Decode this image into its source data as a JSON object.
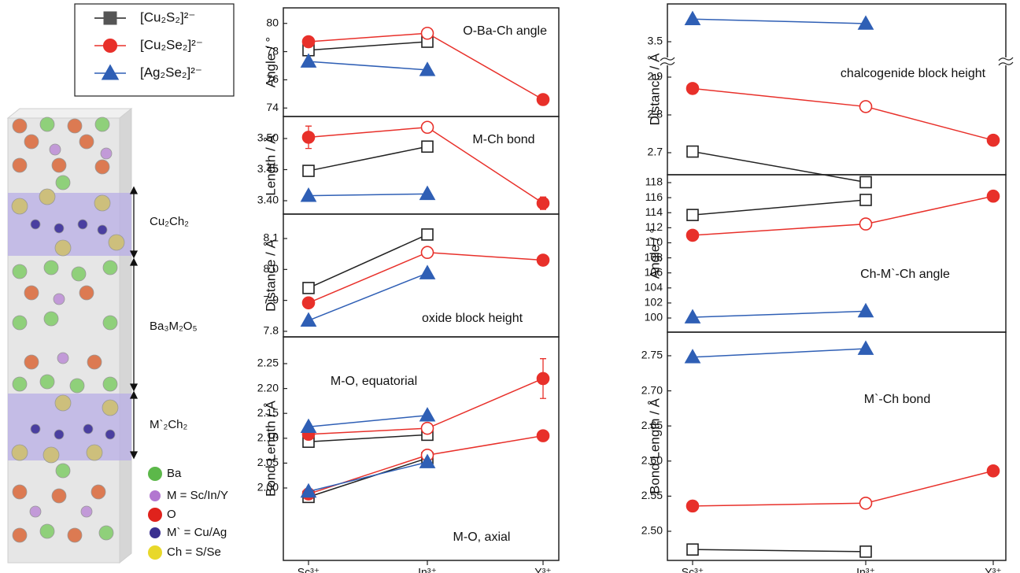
{
  "structure": {
    "blocks": [
      "Cu₂Ch₂",
      "Ba₃M₂O₅",
      "M`₂Ch₂"
    ],
    "atoms": [
      "Ba",
      "M = Sc/In/Y",
      "O",
      "M` = Cu/Ag",
      "Ch = S/Se"
    ]
  },
  "chart_data": [
    {
      "type": "line",
      "ylabel": "Angle / °",
      "annotations": [
        "O-Ba-Ch angle"
      ],
      "ylim": [
        73.4,
        81.1
      ],
      "yticks": [
        74,
        76,
        78,
        80
      ],
      "series": [
        {
          "name": "[Cu₂S₂]²⁻",
          "color": "#222222",
          "marker": "square",
          "values": [
            78.1,
            78.7,
            null
          ],
          "filled": [
            false,
            false,
            false
          ]
        },
        {
          "name": "[Cu₂Se₂]²⁻",
          "color": "#e8302a",
          "marker": "circle",
          "values": [
            78.7,
            79.3,
            74.6
          ],
          "filled": [
            true,
            false,
            true
          ],
          "errors": [
            null,
            null,
            0.25
          ]
        },
        {
          "name": "[Ag₂Se₂]²⁻",
          "color": "#2f5fb5",
          "marker": "triangle",
          "values": [
            77.3,
            76.7,
            null
          ],
          "filled": [
            true,
            true,
            true
          ]
        }
      ]
    },
    {
      "type": "line",
      "ylabel": "Length / Å",
      "annotations": [
        "M-Ch bond"
      ],
      "ylim": [
        3.3785,
        3.5354
      ],
      "yticks": [
        {
          "value": 3.4,
          "label": "3.40"
        },
        {
          "value": 3.45,
          "label": "3.45"
        },
        {
          "value": 3.5,
          "label": "3.50"
        }
      ],
      "series": [
        {
          "name": "[Cu₂S₂]²⁻",
          "color": "#222222",
          "marker": "square",
          "values": [
            3.448,
            3.487,
            null
          ],
          "filled": [
            false,
            false,
            false
          ]
        },
        {
          "name": "[Cu₂Se₂]²⁻",
          "color": "#e8302a",
          "marker": "circle",
          "values": [
            3.502,
            3.518,
            3.396
          ],
          "filled": [
            true,
            false,
            true
          ],
          "errors": [
            0.018,
            null,
            0.01
          ]
        },
        {
          "name": "[Ag₂Se₂]²⁻",
          "color": "#2f5fb5",
          "marker": "triangle",
          "values": [
            3.408,
            3.411,
            null
          ],
          "filled": [
            true,
            true,
            true
          ]
        }
      ]
    },
    {
      "type": "line",
      "ylabel": "Distance / Å",
      "annotations": [
        "oxide block height"
      ],
      "ylim": [
        7.782,
        8.179
      ],
      "yticks": [
        7.8,
        7.9,
        {
          "value": 8.0,
          "label": "8.0"
        },
        8.1
      ],
      "series": [
        {
          "name": "[Cu₂S₂]²⁻",
          "color": "#222222",
          "marker": "square",
          "values": [
            7.94,
            8.113,
            null
          ],
          "filled": [
            false,
            false,
            false
          ]
        },
        {
          "name": "[Cu₂Se₂]²⁻",
          "color": "#e8302a",
          "marker": "circle",
          "values": [
            7.892,
            8.055,
            8.03
          ],
          "filled": [
            true,
            false,
            true
          ]
        },
        {
          "name": "[Ag₂Se₂]²⁻",
          "color": "#2f5fb5",
          "marker": "triangle",
          "values": [
            7.835,
            7.988,
            null
          ],
          "filled": [
            true,
            true,
            true
          ]
        }
      ]
    },
    {
      "type": "line",
      "ylabel": "Bond Length / Å",
      "annotations": [
        "M-O, equatorial",
        "M-O, axial"
      ],
      "categories": [
        "Sc³⁺",
        "In³⁺",
        "Y³⁺"
      ],
      "ylim": [
        1.8544,
        2.3038
      ],
      "yticks": [
        {
          "value": 2.0,
          "label": "2.00"
        },
        2.05,
        {
          "value": 2.1,
          "label": "2.10"
        },
        2.15,
        {
          "value": 2.2,
          "label": "2.20"
        },
        2.25
      ],
      "series": [
        {
          "name": "[Cu₂S₂]²⁻",
          "color": "#222222",
          "marker": "square",
          "values": [
            2.093,
            2.107,
            null
          ],
          "filled": [
            false,
            false,
            false
          ]
        },
        {
          "name": "[Cu₂Se₂]²⁻",
          "color": "#e8302a",
          "marker": "circle",
          "values": [
            2.108,
            2.12,
            2.22
          ],
          "filled": [
            true,
            false,
            true
          ],
          "errors": [
            null,
            null,
            0.04
          ]
        },
        {
          "name": "[Ag₂Se₂]²⁻",
          "color": "#2f5fb5",
          "marker": "triangle",
          "values": [
            2.123,
            2.146,
            null
          ],
          "filled": [
            true,
            true,
            true
          ]
        },
        {
          "name": "[Cu₂S₂]²⁻",
          "color": "#222222",
          "marker": "square",
          "values": [
            1.982,
            2.06,
            null
          ],
          "filled": [
            false,
            false,
            false
          ]
        },
        {
          "name": "[Cu₂Se₂]²⁻",
          "color": "#e8302a",
          "marker": "circle",
          "values": [
            1.988,
            2.066,
            2.105
          ],
          "filled": [
            true,
            false,
            true
          ]
        },
        {
          "name": "[Ag₂Se₂]²⁻",
          "color": "#2f5fb5",
          "marker": "triangle",
          "values": [
            1.993,
            2.052,
            null
          ],
          "filled": [
            true,
            true,
            true
          ]
        }
      ]
    },
    {
      "type": "line",
      "ylabel": "Distance / Å",
      "annotations": [
        "chalcogenide block height"
      ],
      "ylim": [
        2.6417,
        3.6
      ],
      "ylim_break": [
        2.9417,
        3.448
      ],
      "yticks": [
        2.7,
        2.8,
        2.9,
        3.5
      ],
      "series": [
        {
          "name": "[Cu₂S₂]²⁻",
          "color": "#222222",
          "marker": "square",
          "values": [
            2.703,
            2.622,
            null
          ],
          "filled": [
            false,
            false,
            false
          ]
        },
        {
          "name": "[Cu₂Se₂]²⁻",
          "color": "#e8302a",
          "marker": "circle",
          "values": [
            2.87,
            2.822,
            2.733
          ],
          "filled": [
            true,
            false,
            true
          ]
        },
        {
          "name": "[Ag₂Se₂]²⁻",
          "color": "#2f5fb5",
          "marker": "triangle",
          "values": [
            3.56,
            3.548,
            null
          ],
          "filled": [
            true,
            true,
            true
          ]
        }
      ]
    },
    {
      "type": "line",
      "ylabel": "Angle / °",
      "annotations": [
        "Ch-M`-Ch angle"
      ],
      "ylim": [
        98.12,
        119.05
      ],
      "yticks": [
        100,
        102,
        104,
        106,
        108,
        110,
        112,
        114,
        116,
        118
      ],
      "series": [
        {
          "name": "[Cu₂S₂]²⁻",
          "color": "#222222",
          "marker": "square",
          "values": [
            113.7,
            115.7,
            null
          ],
          "filled": [
            false,
            false,
            false
          ]
        },
        {
          "name": "[Cu₂Se₂]²⁻",
          "color": "#e8302a",
          "marker": "circle",
          "values": [
            111.0,
            112.5,
            116.2
          ],
          "filled": [
            true,
            false,
            true
          ]
        },
        {
          "name": "[Ag₂Se₂]²⁻",
          "color": "#2f5fb5",
          "marker": "triangle",
          "values": [
            100.1,
            100.9,
            null
          ],
          "filled": [
            true,
            true,
            true
          ]
        }
      ]
    },
    {
      "type": "line",
      "ylabel": "Bond Length / Å",
      "annotations": [
        "M`-Ch bond"
      ],
      "categories": [
        "Sc³⁺",
        "In³⁺",
        "Y³⁺"
      ],
      "ylim": [
        2.4585,
        2.7836
      ],
      "yticks": [
        {
          "value": 2.5,
          "label": "2.50"
        },
        2.55,
        {
          "value": 2.6,
          "label": "2.60"
        },
        2.65,
        {
          "value": 2.7,
          "label": "2.70"
        },
        2.75
      ],
      "series": [
        {
          "name": "[Cu₂S₂]²⁻",
          "color": "#222222",
          "marker": "square",
          "values": [
            2.474,
            2.471,
            null
          ],
          "filled": [
            false,
            false,
            false
          ]
        },
        {
          "name": "[Cu₂Se₂]²⁻",
          "color": "#e8302a",
          "marker": "circle",
          "values": [
            2.536,
            2.54,
            2.586
          ],
          "filled": [
            true,
            false,
            true
          ]
        },
        {
          "name": "[Ag₂Se₂]²⁻",
          "color": "#2f5fb5",
          "marker": "triangle",
          "values": [
            2.748,
            2.76,
            null
          ],
          "filled": [
            true,
            true,
            true
          ]
        }
      ]
    }
  ]
}
